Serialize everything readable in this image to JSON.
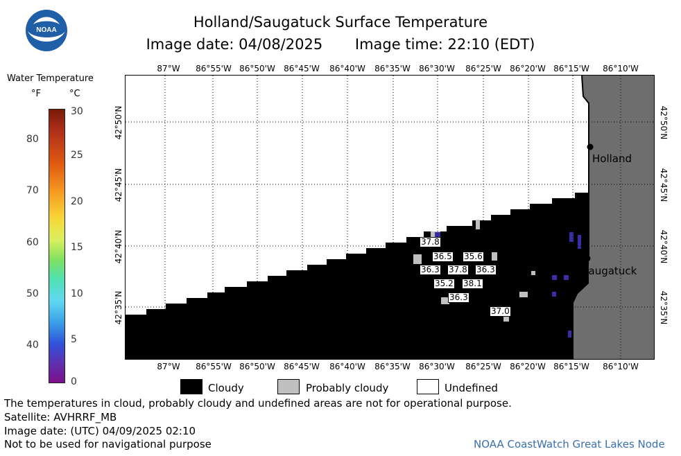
{
  "header": {
    "title": "Holland/Saugatuck Surface Temperature",
    "image_date": "Image date: 04/08/2025",
    "image_time": "Image time: 22:10 (EDT)"
  },
  "legend": {
    "title": "Water Temperature",
    "unit_f": "°F",
    "unit_c": "°C",
    "fahrenheit_ticks": [
      "80",
      "70",
      "60",
      "50",
      "40"
    ],
    "celsius_ticks": [
      "30",
      "25",
      "20",
      "15",
      "10",
      "5",
      "0"
    ]
  },
  "map": {
    "longitude_labels": [
      "87°W",
      "86°55'W",
      "86°50'W",
      "86°45'W",
      "86°40'W",
      "86°35'W",
      "86°30'W",
      "86°25'W",
      "86°20'W",
      "86°15'W",
      "86°10'W"
    ],
    "latitude_labels": [
      "42°50'N",
      "42°45'N",
      "42°40'N",
      "42°35'N"
    ],
    "cities": [
      "Holland",
      "Saugatuck"
    ],
    "temperature_labels": [
      "37.8",
      "36.5",
      "35.6",
      "36.3",
      "37.8",
      "36.3",
      "35.2",
      "38.1",
      "36.3",
      "37.0"
    ],
    "colors": {
      "cloudy": "#000000",
      "probably_cloudy": "#c0c0c0",
      "land": "#6e6e6e",
      "undefined": "#ffffff"
    }
  },
  "key": {
    "cloudy": "Cloudy",
    "probably_cloudy": "Probably cloudy",
    "undefined": "Undefined"
  },
  "footer": {
    "disclaimer": "The temperatures in cloud, probably cloudy and undefined areas are not for operational purpose.",
    "satellite": "Satellite: AVHRRF_MB",
    "utc_date": "Image date: (UTC) 04/09/2025  02:10",
    "navigation": "Not to be used for navigational purpose",
    "credit": "NOAA CoastWatch Great Lakes Node"
  }
}
